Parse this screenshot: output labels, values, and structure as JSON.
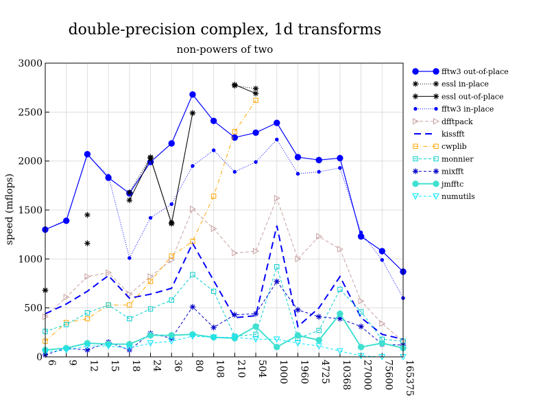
{
  "chart_data": {
    "type": "line",
    "title": "double-precision complex, 1d transforms",
    "subtitle": "non-powers of two",
    "xlabel": "",
    "ylabel": "speed (mflops)",
    "ylim": [
      0,
      3000
    ],
    "yticks": [
      "0",
      "500",
      "1000",
      "1500",
      "2000",
      "2500",
      "3000"
    ],
    "categories": [
      "6",
      "9",
      "12",
      "15",
      "18",
      "24",
      "36",
      "80",
      "108",
      "210",
      "504",
      "1000",
      "1960",
      "4725",
      "10368",
      "27000",
      "75600",
      "165375"
    ],
    "grid": true,
    "legend_position": "right",
    "series": [
      {
        "name": "fftw3 out-of-place",
        "color": "#0000ff",
        "dash": "",
        "marker": "circle",
        "width": 1.2,
        "values": [
          1300,
          1390,
          2070,
          1830,
          1670,
          1990,
          2180,
          2680,
          2410,
          2240,
          2290,
          2390,
          2040,
          2010,
          2030,
          1230,
          1080,
          870
        ]
      },
      {
        "name": "essl in-place",
        "color": "#000000",
        "dash": "1,2",
        "marker": "star",
        "width": 1,
        "values": [
          680,
          null,
          1160,
          null,
          1680,
          2040,
          1370,
          2490,
          null,
          2770,
          2740,
          null,
          null,
          null,
          null,
          null,
          null,
          null
        ]
      },
      {
        "name": "essl out-of-place",
        "color": "#000000",
        "dash": "",
        "marker": "star",
        "width": 1,
        "values": [
          680,
          null,
          1450,
          null,
          1600,
          2030,
          1360,
          2490,
          null,
          2780,
          2690,
          null,
          null,
          null,
          null,
          null,
          null,
          null
        ]
      },
      {
        "name": "fftw3 in-place",
        "color": "#0000ff",
        "dash": "1,2",
        "marker": "dot",
        "width": 1,
        "values": [
          1300,
          1400,
          2060,
          1850,
          1010,
          1420,
          1560,
          1950,
          2110,
          1890,
          1990,
          2220,
          1870,
          1890,
          1930,
          1270,
          990,
          600
        ]
      },
      {
        "name": "dfftpack",
        "color": "#c8a0a0",
        "dash": "5,3",
        "marker": "triangle-right",
        "width": 1,
        "values": [
          410,
          610,
          820,
          860,
          640,
          820,
          990,
          1510,
          1310,
          1060,
          1080,
          1620,
          1000,
          1230,
          1100,
          570,
          340,
          160
        ]
      },
      {
        "name": "kissfft",
        "color": "#0000ff",
        "dash": "10,6",
        "marker": "none",
        "width": 2,
        "values": [
          440,
          540,
          670,
          830,
          600,
          640,
          700,
          1160,
          780,
          400,
          420,
          1340,
          310,
          500,
          820,
          400,
          230,
          180
        ]
      },
      {
        "name": "cwplib",
        "color": "#ffa500",
        "dash": "6,3,1,3",
        "marker": "square",
        "width": 1,
        "values": [
          160,
          350,
          390,
          530,
          530,
          770,
          1030,
          1180,
          1640,
          2300,
          2620,
          null,
          null,
          null,
          null,
          null,
          null,
          null
        ]
      },
      {
        "name": "monnier",
        "color": "#00cccc",
        "dash": "4,3",
        "marker": "square",
        "width": 1,
        "values": [
          260,
          330,
          450,
          530,
          390,
          490,
          580,
          840,
          670,
          210,
          230,
          920,
          190,
          270,
          690,
          460,
          180,
          160
        ]
      },
      {
        "name": "mixfft",
        "color": "#0000c8",
        "dash": "4,3",
        "marker": "star",
        "width": 1,
        "values": [
          20,
          90,
          70,
          150,
          70,
          240,
          190,
          510,
          300,
          430,
          440,
          770,
          480,
          410,
          390,
          310,
          130,
          120
        ]
      },
      {
        "name": "jmfftc",
        "color": "#40e0d0",
        "dash": "",
        "marker": "circle",
        "width": 2,
        "values": [
          70,
          90,
          140,
          130,
          130,
          220,
          220,
          230,
          200,
          190,
          310,
          100,
          220,
          170,
          440,
          100,
          140,
          90
        ]
      },
      {
        "name": "numutils",
        "color": "#00e5ff",
        "dash": "4,3",
        "marker": "triangle-down",
        "width": 1,
        "values": [
          50,
          70,
          110,
          110,
          90,
          140,
          160,
          210,
          200,
          200,
          180,
          180,
          140,
          110,
          60,
          10,
          0,
          0
        ]
      }
    ]
  },
  "colors": {
    "grid": "#dddddd",
    "axis": "#000000"
  }
}
